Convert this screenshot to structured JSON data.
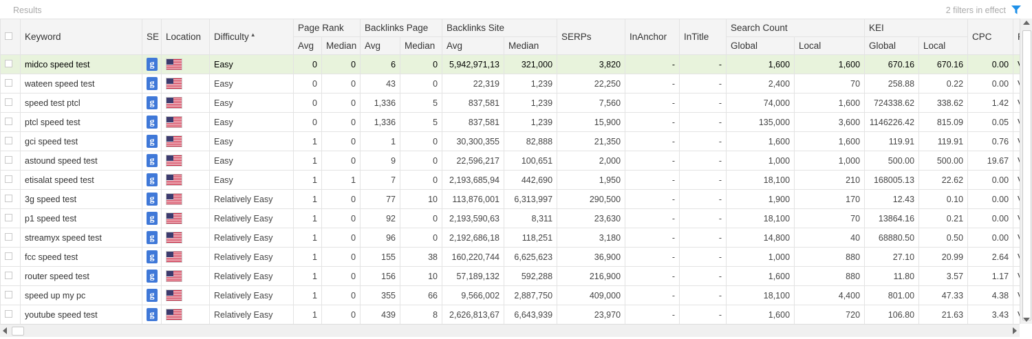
{
  "header": {
    "title": "Results",
    "filters_text": "2 filters in effect",
    "filter_icon": "funnel-icon",
    "accent": "#1e90e8"
  },
  "columns": {
    "keyword": "Keyword",
    "se": "SE",
    "location": "Location",
    "difficulty": "Difficulty",
    "page_rank": "Page Rank",
    "backlinks_page": "Backlinks Page",
    "backlinks_site": "Backlinks Site",
    "serps": "SERPs",
    "inanchor": "InAnchor",
    "intitle": "InTitle",
    "search_count": "Search Count",
    "kei": "KEI",
    "cpc": "CPC",
    "next": "R",
    "sub": {
      "avg": "Avg",
      "median": "Median",
      "global": "Global",
      "local": "Local"
    }
  },
  "sort_indicator": "▲",
  "se_glyph": "g",
  "rows": [
    [
      "midco speed test",
      "Easy",
      "0",
      "0",
      "6",
      "0",
      "5,942,971,13",
      "321,000",
      "3,820",
      "-",
      "-",
      "1,600",
      "1,600",
      "670.16",
      "670.16",
      "0.00",
      "V"
    ],
    [
      "wateen speed test",
      "Easy",
      "0",
      "0",
      "43",
      "0",
      "22,319",
      "1,239",
      "22,250",
      "-",
      "-",
      "2,400",
      "70",
      "258.88",
      "0.22",
      "0.00",
      "V"
    ],
    [
      "speed test ptcl",
      "Easy",
      "0",
      "0",
      "1,336",
      "5",
      "837,581",
      "1,239",
      "7,560",
      "-",
      "-",
      "74,000",
      "1,600",
      "724338.62",
      "338.62",
      "1.42",
      "V"
    ],
    [
      "ptcl speed test",
      "Easy",
      "0",
      "0",
      "1,336",
      "5",
      "837,581",
      "1,239",
      "15,900",
      "-",
      "-",
      "135,000",
      "3,600",
      "1146226.42",
      "815.09",
      "0.05",
      "V"
    ],
    [
      "gci speed test",
      "Easy",
      "1",
      "0",
      "1",
      "0",
      "30,300,355",
      "82,888",
      "21,350",
      "-",
      "-",
      "1,600",
      "1,600",
      "119.91",
      "119.91",
      "0.76",
      "V"
    ],
    [
      "astound speed test",
      "Easy",
      "1",
      "0",
      "9",
      "0",
      "22,596,217",
      "100,651",
      "2,000",
      "-",
      "-",
      "1,000",
      "1,000",
      "500.00",
      "500.00",
      "19.67",
      "V"
    ],
    [
      "etisalat speed test",
      "Easy",
      "1",
      "1",
      "7",
      "0",
      "2,193,685,94",
      "442,690",
      "1,950",
      "-",
      "-",
      "18,100",
      "210",
      "168005.13",
      "22.62",
      "0.00",
      "V"
    ],
    [
      "3g speed test",
      "Relatively Easy",
      "1",
      "0",
      "77",
      "10",
      "113,876,001",
      "6,313,997",
      "290,500",
      "-",
      "-",
      "1,900",
      "170",
      "12.43",
      "0.10",
      "0.00",
      "V"
    ],
    [
      "p1 speed test",
      "Relatively Easy",
      "1",
      "0",
      "92",
      "0",
      "2,193,590,63",
      "8,311",
      "23,630",
      "-",
      "-",
      "18,100",
      "70",
      "13864.16",
      "0.21",
      "0.00",
      "V"
    ],
    [
      "streamyx speed test",
      "Relatively Easy",
      "1",
      "0",
      "96",
      "0",
      "2,192,686,18",
      "118,251",
      "3,180",
      "-",
      "-",
      "14,800",
      "40",
      "68880.50",
      "0.50",
      "0.00",
      "V"
    ],
    [
      "fcc speed test",
      "Relatively Easy",
      "1",
      "0",
      "155",
      "38",
      "160,220,744",
      "6,625,623",
      "36,900",
      "-",
      "-",
      "1,000",
      "880",
      "27.10",
      "20.99",
      "2.64",
      "V"
    ],
    [
      "router speed test",
      "Relatively Easy",
      "1",
      "0",
      "156",
      "10",
      "57,189,132",
      "592,288",
      "216,900",
      "-",
      "-",
      "1,600",
      "880",
      "11.80",
      "3.57",
      "1.17",
      "V"
    ],
    [
      "speed up my pc",
      "Relatively Easy",
      "1",
      "0",
      "355",
      "66",
      "9,566,002",
      "2,887,750",
      "409,000",
      "-",
      "-",
      "18,100",
      "4,400",
      "801.00",
      "47.33",
      "4.38",
      "V"
    ],
    [
      "youtube speed test",
      "Relatively Easy",
      "1",
      "0",
      "439",
      "8",
      "2,626,813,67",
      "6,643,939",
      "23,970",
      "-",
      "-",
      "1,600",
      "720",
      "106.80",
      "21.63",
      "3.43",
      "V"
    ]
  ],
  "selected_row": 0
}
